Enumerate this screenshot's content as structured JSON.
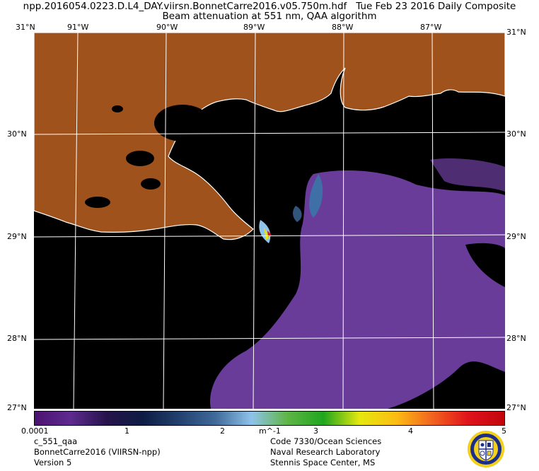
{
  "header": {
    "filename": "npp.2016054.0223.D.L4_DAY.viirsn.BonnetCarre2016.v05.750m.hdf",
    "date": "Tue Feb 23 2016 Daily Composite",
    "subtitle": "Beam attenuation at 551 nm, QAA algorithm"
  },
  "axes": {
    "lon_labels": [
      "91°W",
      "90°W",
      "89°W",
      "88°W",
      "87°W"
    ],
    "lat_labels": [
      "30°N",
      "29°N",
      "28°N"
    ],
    "corner_top": "31°N",
    "corner_bottom": "27°N"
  },
  "colorbar": {
    "labels": [
      "0.0001",
      "1",
      "2",
      "3",
      "4",
      "5"
    ],
    "unit": "m^-1",
    "stops": [
      "#4b1370",
      "#5e2a8f",
      "#25134a",
      "#0d1c44",
      "#22416e",
      "#3f6a9a",
      "#8fc3ea",
      "#5fb546",
      "#1fa61e",
      "#e5e80f",
      "#fbbd13",
      "#f2641e",
      "#e0121b",
      "#c1060d"
    ]
  },
  "footer": {
    "product": "c_551_qaa",
    "region": "BonnetCarre2016 (VIIRSN-npp)",
    "version": "Version 5",
    "org_code": "Code 7330/Ocean Sciences",
    "org_name": "Naval Research Laboratory",
    "org_place": "Stennis Space Center, MS"
  },
  "colors": {
    "land": "#a0521c",
    "no_data": "#000000",
    "plume": "#6a3c9a",
    "coastline": "#ffffff"
  }
}
